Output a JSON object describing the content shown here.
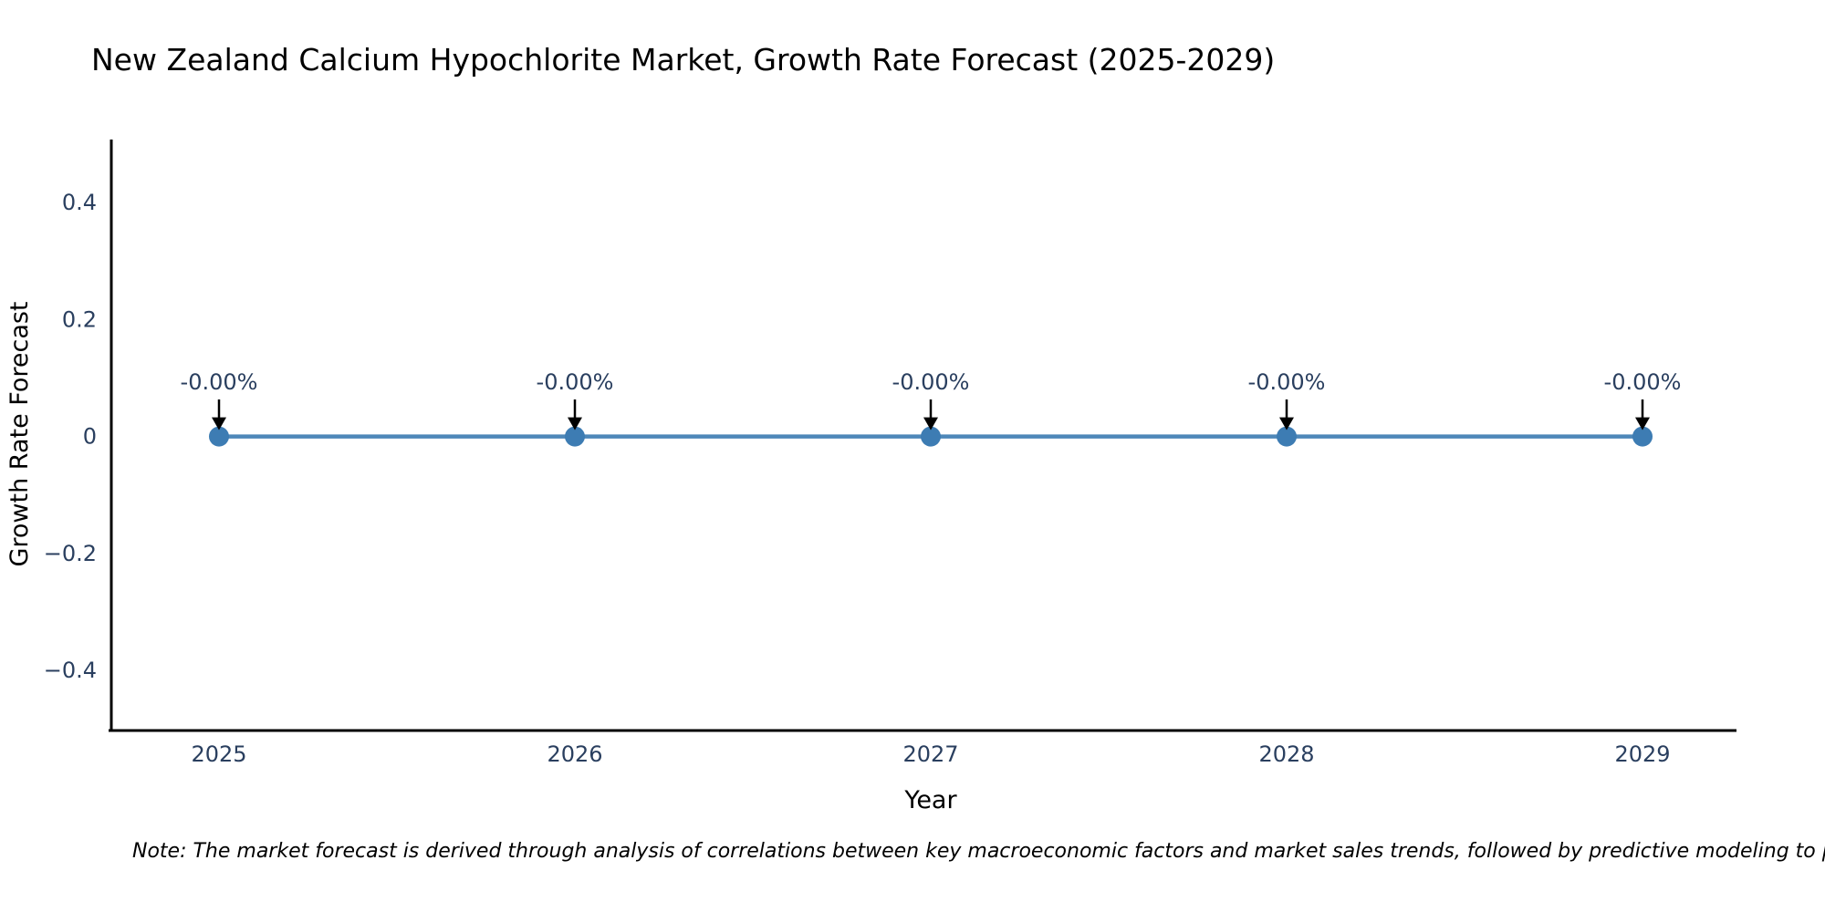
{
  "page": {
    "note": "Note: The market forecast is derived through analysis of correlations between key macroeconomic factors and market sales trends, followed by predictive modeling to project future sales."
  },
  "chart_data": {
    "type": "line",
    "title": "New Zealand Calcium Hypochlorite Market, Growth Rate Forecast (2025-2029)",
    "xlabel": "Year",
    "ylabel": "Growth Rate Forecast",
    "categories": [
      "2025",
      "2026",
      "2027",
      "2028",
      "2029"
    ],
    "series": [
      {
        "name": "Growth Rate Forecast",
        "values": [
          0,
          0,
          0,
          0,
          0
        ],
        "point_labels": [
          "-0.00%",
          "-0.00%",
          "-0.00%",
          "-0.00%",
          "-0.00%"
        ]
      }
    ],
    "yticks": [
      0.4,
      0.2,
      0,
      -0.2,
      -0.4
    ],
    "ytick_labels": [
      "0.4",
      "0.2",
      "0",
      "−0.2",
      "−0.4"
    ],
    "ylim": [
      -0.503,
      0.508
    ],
    "grid": false,
    "legend_position": "none",
    "annotation_arrows": true,
    "colors": {
      "line": "#4e87b9",
      "marker": "#3d7cb3",
      "axis": "#000000",
      "text": "#2a3f5f",
      "annotation": "#2a3f5f",
      "arrow": "#000000",
      "note": "#1a1a1a"
    }
  }
}
